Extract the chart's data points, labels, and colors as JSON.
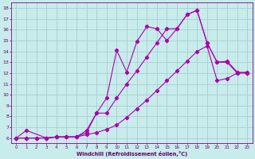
{
  "xlabel": "Windchill (Refroidissement éolien,°C)",
  "bg_color": "#c8ecec",
  "grid_color": "#a8cece",
  "line_color": "#aa00aa",
  "xlim": [
    -0.5,
    23.5
  ],
  "ylim": [
    5.5,
    18.5
  ],
  "xticks": [
    0,
    1,
    2,
    3,
    4,
    5,
    6,
    7,
    8,
    9,
    10,
    11,
    12,
    13,
    14,
    15,
    16,
    17,
    18,
    19,
    20,
    21,
    22,
    23
  ],
  "yticks": [
    6,
    7,
    8,
    9,
    10,
    11,
    12,
    13,
    14,
    15,
    16,
    17,
    18
  ],
  "line1_x": [
    0,
    1,
    3,
    4,
    5,
    6,
    7,
    8,
    9,
    10,
    11,
    12,
    13,
    14,
    15,
    16,
    17,
    18,
    19,
    20,
    21,
    22,
    23
  ],
  "line1_y": [
    6.0,
    6.7,
    6.0,
    6.1,
    6.1,
    6.1,
    6.7,
    8.3,
    9.7,
    14.1,
    12.1,
    14.9,
    16.3,
    16.1,
    15.0,
    16.1,
    17.4,
    17.8,
    14.8,
    13.0,
    13.0,
    12.0,
    12.0
  ],
  "line2_x": [
    0,
    1,
    2,
    3,
    4,
    5,
    6,
    7,
    8,
    9,
    10,
    11,
    12,
    13,
    14,
    15,
    16,
    17,
    18,
    19,
    20,
    21,
    22,
    23
  ],
  "line2_y": [
    6.0,
    6.0,
    6.0,
    6.0,
    6.1,
    6.1,
    6.1,
    6.5,
    8.3,
    8.3,
    9.7,
    11.0,
    12.2,
    13.5,
    14.8,
    16.1,
    16.1,
    17.4,
    17.8,
    14.8,
    13.0,
    13.1,
    12.1,
    12.0
  ],
  "line3_x": [
    0,
    1,
    2,
    3,
    4,
    5,
    6,
    7,
    8,
    9,
    10,
    11,
    12,
    13,
    14,
    15,
    16,
    17,
    18,
    19,
    20,
    21,
    22,
    23
  ],
  "line3_y": [
    6.0,
    6.0,
    6.0,
    6.0,
    6.1,
    6.1,
    6.1,
    6.3,
    6.5,
    6.8,
    7.2,
    7.9,
    8.7,
    9.5,
    10.4,
    11.3,
    12.2,
    13.1,
    14.0,
    14.5,
    11.3,
    11.5,
    12.0,
    12.1
  ]
}
